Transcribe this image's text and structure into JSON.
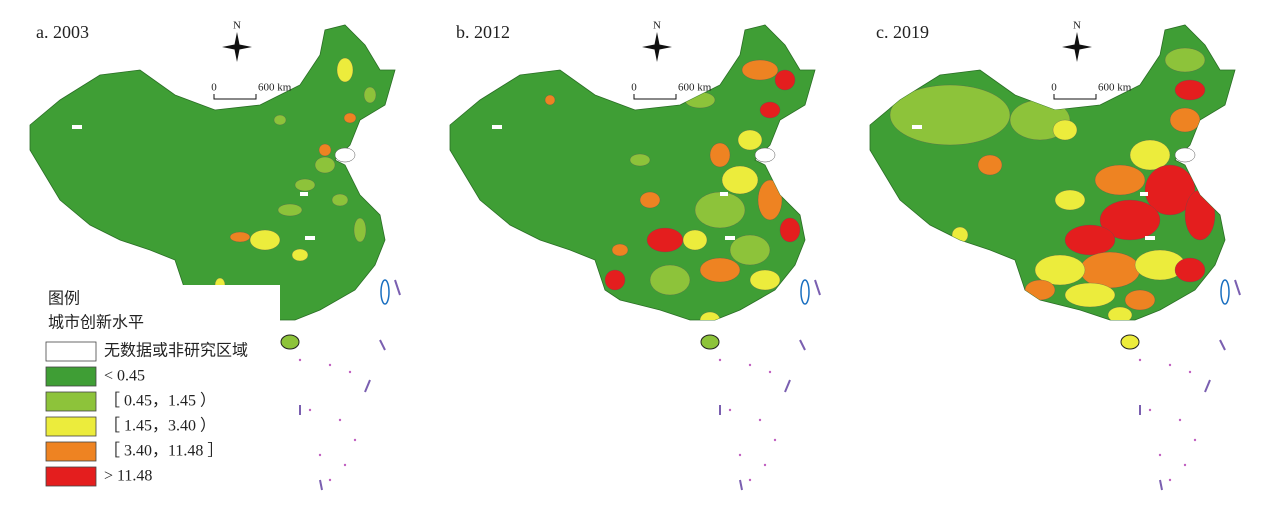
{
  "panels": [
    {
      "title": "a. 2003"
    },
    {
      "title": "b. 2012"
    },
    {
      "title": "c. 2019"
    }
  ],
  "north": "N",
  "scale": {
    "zero": "0",
    "distance": "600 km"
  },
  "legend": {
    "title": "图例",
    "subtitle": "城市创新水平",
    "items": [
      {
        "label": "无数据或非研究区域",
        "color": "#ffffff"
      },
      {
        "label": "< 0.45",
        "color": "#3f9e35"
      },
      {
        "label": "［ 0.45，1.45 ）",
        "color": "#8dc33a"
      },
      {
        "label": "［ 1.45，3.40 ）",
        "color": "#ecec3c"
      },
      {
        "label": "［ 3.40，11.48 ］",
        "color": "#ee8322"
      },
      {
        "label": "> 11.48",
        "color": "#e41e1e"
      }
    ]
  }
}
